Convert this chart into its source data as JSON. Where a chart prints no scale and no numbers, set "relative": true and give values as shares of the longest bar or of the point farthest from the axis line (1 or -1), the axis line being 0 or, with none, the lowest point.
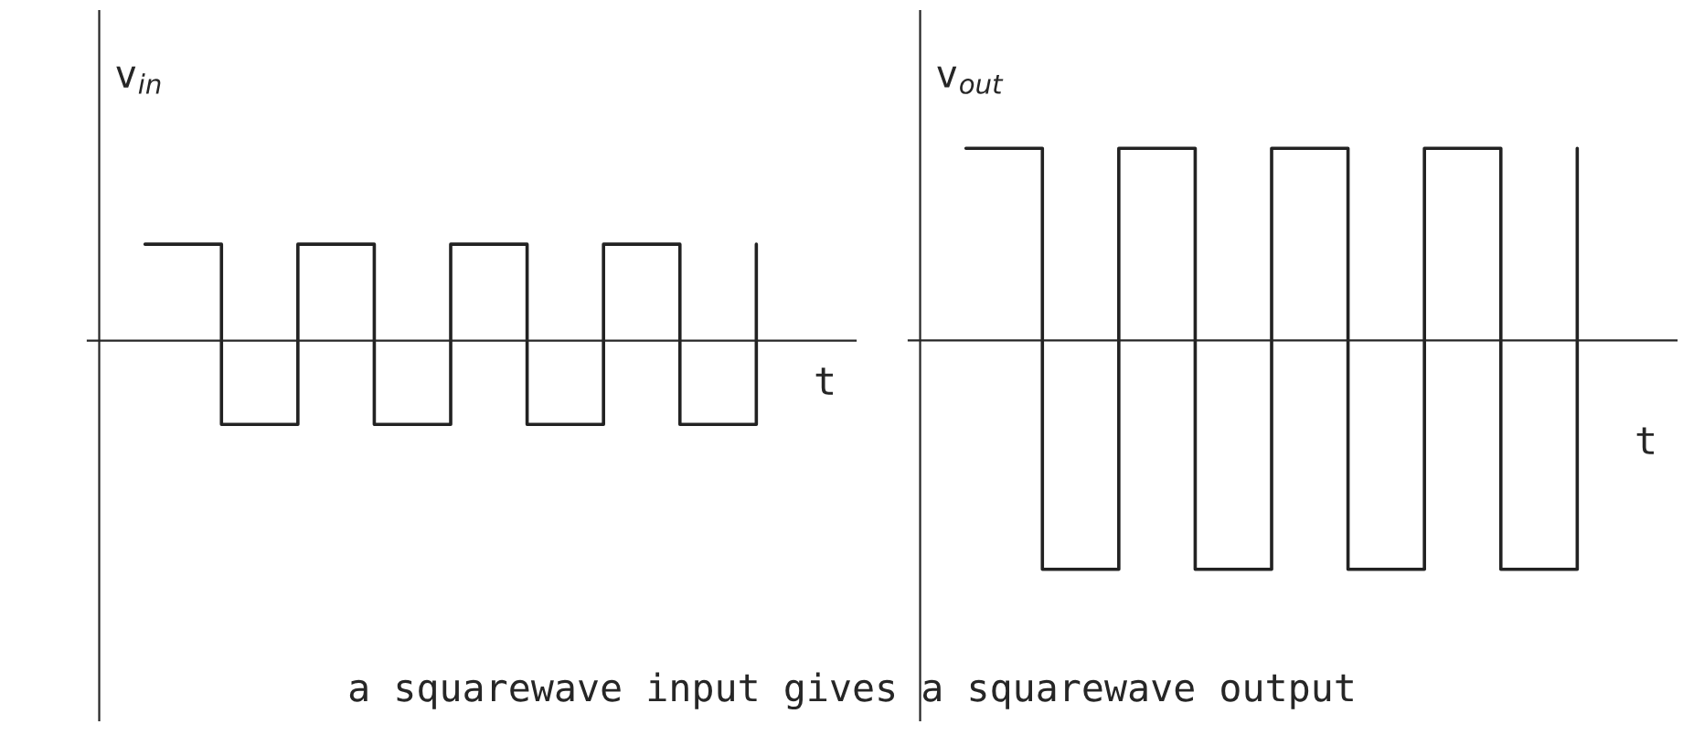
{
  "chart_data": [
    {
      "type": "step",
      "relative": true,
      "ylabel": "v$_{in}$",
      "xlabel": "t",
      "tick_labels": false,
      "grid": false,
      "legend": false,
      "categories": [
        null,
        null,
        null,
        null,
        null,
        null,
        null,
        null,
        null
      ],
      "series": [
        {
          "color": "#222222",
          "values": [
            1,
            -0.87,
            1,
            -0.87,
            1,
            -0.87,
            1,
            -0.87,
            1
          ]
        }
      ]
    },
    {
      "type": "step",
      "relative": true,
      "ylabel": "v$_{out}$",
      "xlabel": "t",
      "tick_labels": false,
      "grid": false,
      "legend": false,
      "categories": [
        null,
        null,
        null,
        null,
        null,
        null,
        null,
        null,
        null
      ],
      "series": [
        {
          "color": "#222222",
          "values": [
            0.84,
            -1,
            0.84,
            -1,
            0.84,
            -1,
            0.84,
            -1,
            0.84
          ]
        }
      ],
      "annotations": [
        "a squarewave input gives a squarewave output"
      ]
    }
  ]
}
